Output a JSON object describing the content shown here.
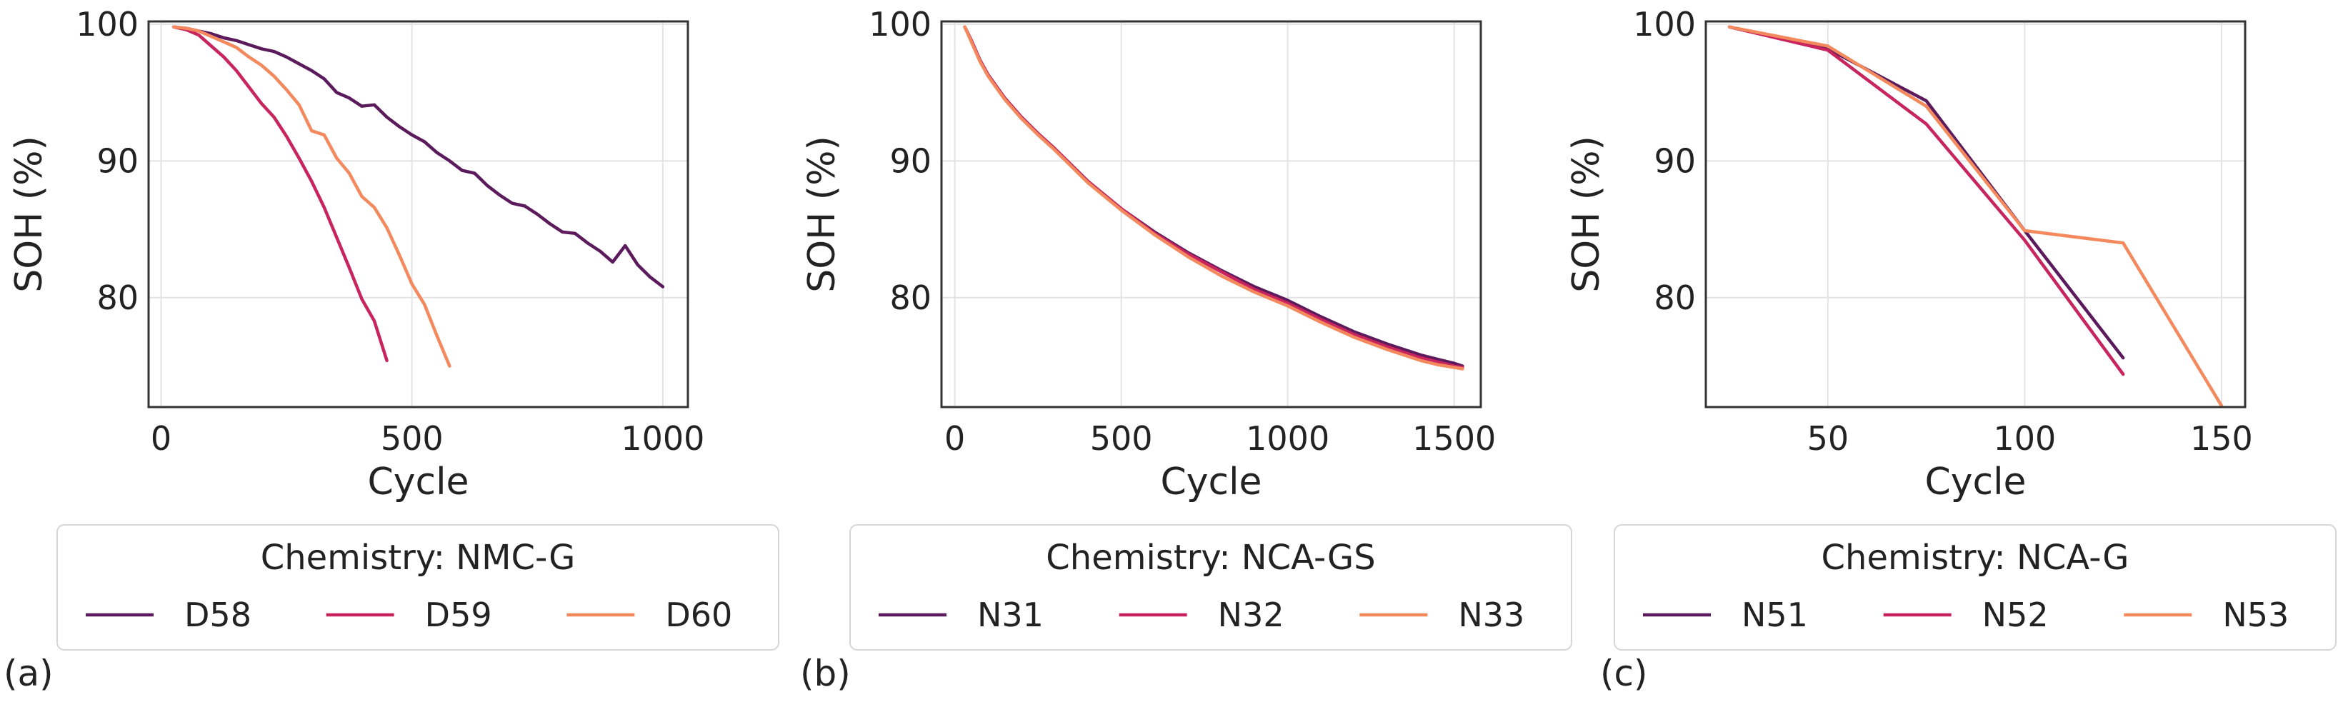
{
  "legend_colors": [
    "#5b1a5c",
    "#c8245e",
    "#f4895e"
  ],
  "chart_data": [
    {
      "type": "line",
      "panel_label": "(a)",
      "xlabel": "Cycle",
      "ylabel": "SOH (%)",
      "xlim": [
        -25,
        1050
      ],
      "ylim": [
        72,
        100.2
      ],
      "xticks": [
        0,
        500,
        1000
      ],
      "yticks": [
        80,
        90,
        100
      ],
      "legend_title": "Chemistry: NMC-G",
      "series": [
        {
          "name": "D58",
          "x": [
            25,
            50,
            75,
            100,
            125,
            150,
            175,
            200,
            225,
            250,
            275,
            300,
            325,
            350,
            375,
            400,
            425,
            450,
            475,
            500,
            525,
            550,
            575,
            600,
            625,
            650,
            675,
            700,
            725,
            750,
            775,
            800,
            825,
            850,
            875,
            900,
            925,
            950,
            975,
            1000
          ],
          "y": [
            99.8,
            99.7,
            99.5,
            99.3,
            99.0,
            98.8,
            98.5,
            98.2,
            98.0,
            97.6,
            97.1,
            96.6,
            96.0,
            95.0,
            94.6,
            94.0,
            94.1,
            93.2,
            92.5,
            91.9,
            91.4,
            90.6,
            90.0,
            89.3,
            89.1,
            88.2,
            87.5,
            86.9,
            86.7,
            86.1,
            85.4,
            84.8,
            84.7,
            84.0,
            83.4,
            82.6,
            83.8,
            82.4,
            81.5,
            80.8
          ]
        },
        {
          "name": "D59",
          "x": [
            25,
            50,
            75,
            100,
            125,
            150,
            175,
            200,
            225,
            250,
            275,
            300,
            325,
            350,
            375,
            400,
            425,
            450
          ],
          "y": [
            99.8,
            99.6,
            99.2,
            98.4,
            97.6,
            96.6,
            95.4,
            94.2,
            93.2,
            91.8,
            90.2,
            88.5,
            86.6,
            84.4,
            82.2,
            79.9,
            78.3,
            75.4
          ]
        },
        {
          "name": "D60",
          "x": [
            25,
            50,
            75,
            100,
            125,
            150,
            175,
            200,
            225,
            250,
            275,
            300,
            325,
            350,
            375,
            400,
            425,
            450,
            475,
            500,
            525,
            550,
            575
          ],
          "y": [
            99.8,
            99.7,
            99.5,
            99.1,
            98.7,
            98.3,
            97.6,
            97.0,
            96.2,
            95.2,
            94.1,
            92.2,
            91.9,
            90.2,
            89.1,
            87.4,
            86.6,
            85.1,
            83.1,
            81.0,
            79.5,
            77.2,
            75.0
          ]
        }
      ]
    },
    {
      "type": "line",
      "panel_label": "(b)",
      "xlabel": "Cycle",
      "ylabel": "SOH (%)",
      "xlim": [
        -40,
        1580
      ],
      "ylim": [
        72,
        100.2
      ],
      "xticks": [
        0,
        500,
        1000,
        1500
      ],
      "yticks": [
        80,
        90,
        100
      ],
      "legend_title": "Chemistry: NCA-GS",
      "series": [
        {
          "name": "N31",
          "x": [
            30,
            50,
            75,
            100,
            150,
            200,
            250,
            300,
            400,
            500,
            600,
            700,
            800,
            900,
            1000,
            1100,
            1200,
            1300,
            1400,
            1450,
            1500,
            1525
          ],
          "y": [
            99.8,
            98.8,
            97.4,
            96.3,
            94.6,
            93.2,
            92.0,
            90.9,
            88.5,
            86.5,
            84.8,
            83.3,
            82.0,
            80.8,
            79.8,
            78.6,
            77.5,
            76.6,
            75.8,
            75.5,
            75.2,
            75.0
          ]
        },
        {
          "name": "N32",
          "x": [
            30,
            50,
            75,
            100,
            150,
            200,
            250,
            300,
            400,
            500,
            600,
            700,
            800,
            900,
            1000,
            1100,
            1200,
            1300,
            1400,
            1450,
            1500,
            1525
          ],
          "y": [
            99.8,
            98.8,
            97.4,
            96.3,
            94.6,
            93.2,
            92.0,
            90.9,
            88.5,
            86.5,
            84.7,
            83.2,
            81.9,
            80.6,
            79.6,
            78.4,
            77.3,
            76.4,
            75.6,
            75.3,
            75.0,
            74.9
          ]
        },
        {
          "name": "N33",
          "x": [
            30,
            50,
            75,
            100,
            150,
            200,
            250,
            300,
            400,
            500,
            600,
            700,
            800,
            900,
            1000,
            1100,
            1200,
            1300,
            1400,
            1450,
            1500,
            1525
          ],
          "y": [
            99.8,
            98.7,
            97.3,
            96.2,
            94.5,
            93.1,
            91.9,
            90.8,
            88.4,
            86.4,
            84.6,
            83.0,
            81.6,
            80.4,
            79.4,
            78.2,
            77.1,
            76.2,
            75.4,
            75.1,
            74.9,
            74.8
          ]
        }
      ]
    },
    {
      "type": "line",
      "panel_label": "(c)",
      "xlabel": "Cycle",
      "ylabel": "SOH (%)",
      "xlim": [
        19,
        156
      ],
      "ylim": [
        72,
        100.2
      ],
      "xticks": [
        50,
        100,
        150
      ],
      "yticks": [
        80,
        90,
        100
      ],
      "legend_title": "Chemistry: NCA-G",
      "series": [
        {
          "name": "N51",
          "x": [
            25,
            50,
            75,
            100,
            125
          ],
          "y": [
            99.8,
            98.2,
            94.4,
            84.9,
            75.6
          ]
        },
        {
          "name": "N52",
          "x": [
            25,
            50,
            75,
            100,
            125
          ],
          "y": [
            99.8,
            98.1,
            92.7,
            84.2,
            74.4
          ]
        },
        {
          "name": "N53",
          "x": [
            25,
            50,
            75,
            100,
            125,
            150
          ],
          "y": [
            99.8,
            98.4,
            94.0,
            84.9,
            84.0,
            72.1
          ]
        }
      ]
    }
  ]
}
